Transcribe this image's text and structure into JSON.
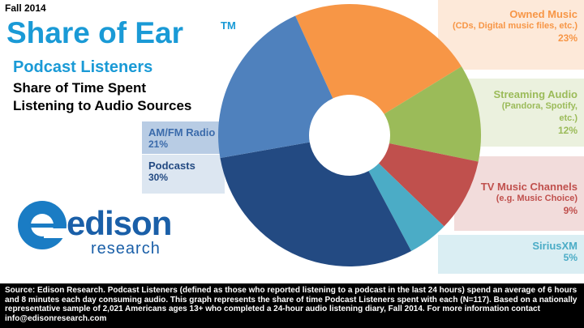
{
  "header": {
    "season": "Fall 2014",
    "title": "Share of Ear",
    "mark": "TM",
    "subtitle": "Podcast Listeners",
    "description": "Share of Time Spent Listening to Audio Sources"
  },
  "logo": {
    "name": "edison",
    "sub": "research"
  },
  "chart_data": {
    "type": "donut",
    "categories": [
      "Owned Music",
      "Streaming Audio",
      "TV Music Channels",
      "SiriusXM",
      "Podcasts",
      "AM/FM Radio"
    ],
    "descriptions": [
      "(CDs, Digital music files, etc.)",
      "(Pandora, Spotify, etc.)",
      "(e.g. Music Choice)",
      null,
      null,
      null
    ],
    "values": [
      23,
      12,
      9,
      5,
      30,
      21
    ],
    "value_labels": [
      "23%",
      "12%",
      "9%",
      "5%",
      "30%",
      "21%"
    ],
    "colors": [
      "#f79646",
      "#9bbb59",
      "#c0504d",
      "#4bacc6",
      "#234a82",
      "#4f81bd"
    ]
  },
  "footer": "Source: Edison Research.  Podcast Listeners (defined as those who reported listening to a podcast in the last 24 hours) spend an average of 6 hours and 8 minutes each day consuming audio.  This graph represents the share of time Podcast  Listeners spent with each (N=117).  Based on a nationally representative sample of 2,021 Americans ages 13+ who completed a 24-hour audio listening diary, Fall 2014.  For more information contact info@edisonresearch.com"
}
